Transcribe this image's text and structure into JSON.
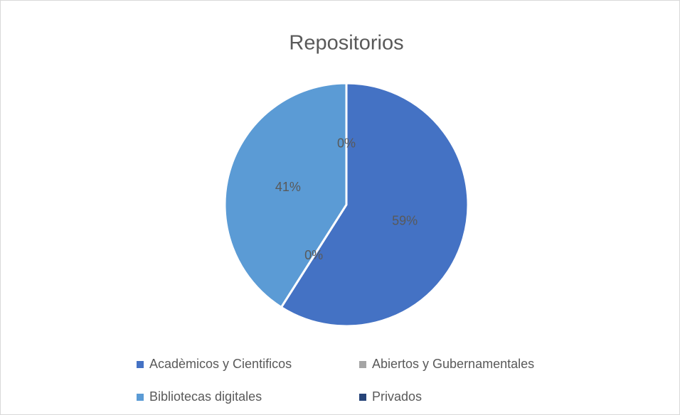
{
  "chart_data": {
    "type": "pie",
    "title": "Repositorios",
    "categories": [
      "Acadèmicos y Cientificos",
      "Abiertos y Gubernamentales",
      "Bibliotecas digitales",
      "Privados"
    ],
    "values": [
      59,
      0,
      41,
      0
    ],
    "value_labels": [
      "59%",
      "0%",
      "41%",
      "0%"
    ],
    "colors": [
      "#4472c4",
      "#a5a5a5",
      "#5b9bd5",
      "#264478"
    ]
  }
}
